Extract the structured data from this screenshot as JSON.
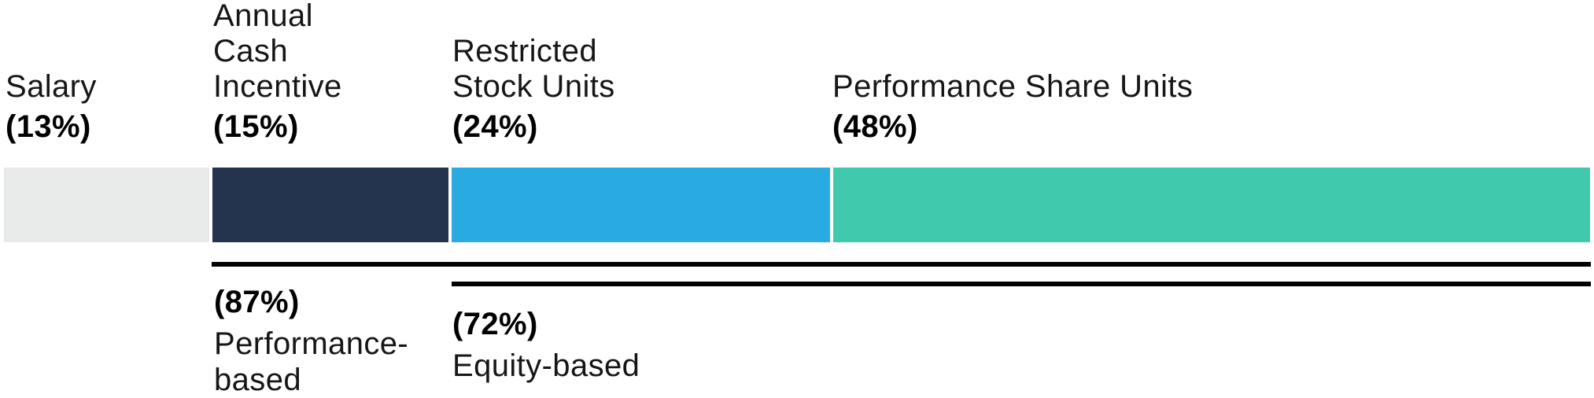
{
  "chart_data": {
    "type": "bar",
    "stacked": true,
    "units": "percent of total compensation",
    "title": "",
    "categories": [
      "Salary",
      "Annual Cash Incentive",
      "Restricted Stock Units",
      "Performance Share Units"
    ],
    "values": [
      13,
      15,
      24,
      48
    ],
    "segments": [
      {
        "label": "Salary",
        "label_lines": "Salary",
        "pct": 13,
        "pct_label": "(13%)",
        "color": "#e9eaea"
      },
      {
        "label": "Annual Cash Incentive",
        "label_lines": "Annual\nCash\nIncentive",
        "pct": 15,
        "pct_label": "(15%)",
        "color": "#24344e"
      },
      {
        "label": "Restricted Stock Units",
        "label_lines": "Restricted\nStock Units",
        "pct": 24,
        "pct_label": "(24%)",
        "color": "#29abe2"
      },
      {
        "label": "Performance Share Units",
        "label_lines": "Performance Share Units",
        "pct": 48,
        "pct_label": "(48%)",
        "color": "#41c9ad"
      }
    ],
    "brackets": [
      {
        "pct_label": "(87%)",
        "label": "Performance-\nbased",
        "covers": [
          "Annual Cash Incentive",
          "Restricted Stock Units",
          "Performance Share Units"
        ],
        "line_color": "#000000"
      },
      {
        "pct_label": "(72%)",
        "label": "Equity-based",
        "covers": [
          "Restricted Stock Units",
          "Performance Share Units"
        ],
        "line_color": "#000000"
      }
    ]
  }
}
